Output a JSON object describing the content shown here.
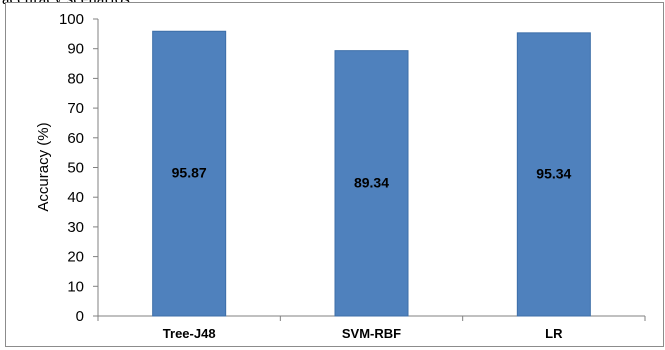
{
  "caption": "accuracy scenarios",
  "chart_data": {
    "type": "bar",
    "title": "",
    "xlabel": "",
    "ylabel": "Accuracy (%)",
    "categories": [
      "Tree-J48",
      "SVM-RBF",
      "LR"
    ],
    "values": [
      95.87,
      89.34,
      95.34
    ],
    "data_labels": [
      "95.87",
      "89.34",
      "95.34"
    ],
    "ylim": [
      0,
      100
    ],
    "y_ticks": [
      0,
      10,
      20,
      30,
      40,
      50,
      60,
      70,
      80,
      90,
      100
    ],
    "grid": false,
    "legend": "none",
    "bar_color": "#4f81bd",
    "bar_edge_color": "#3c6ea8"
  }
}
